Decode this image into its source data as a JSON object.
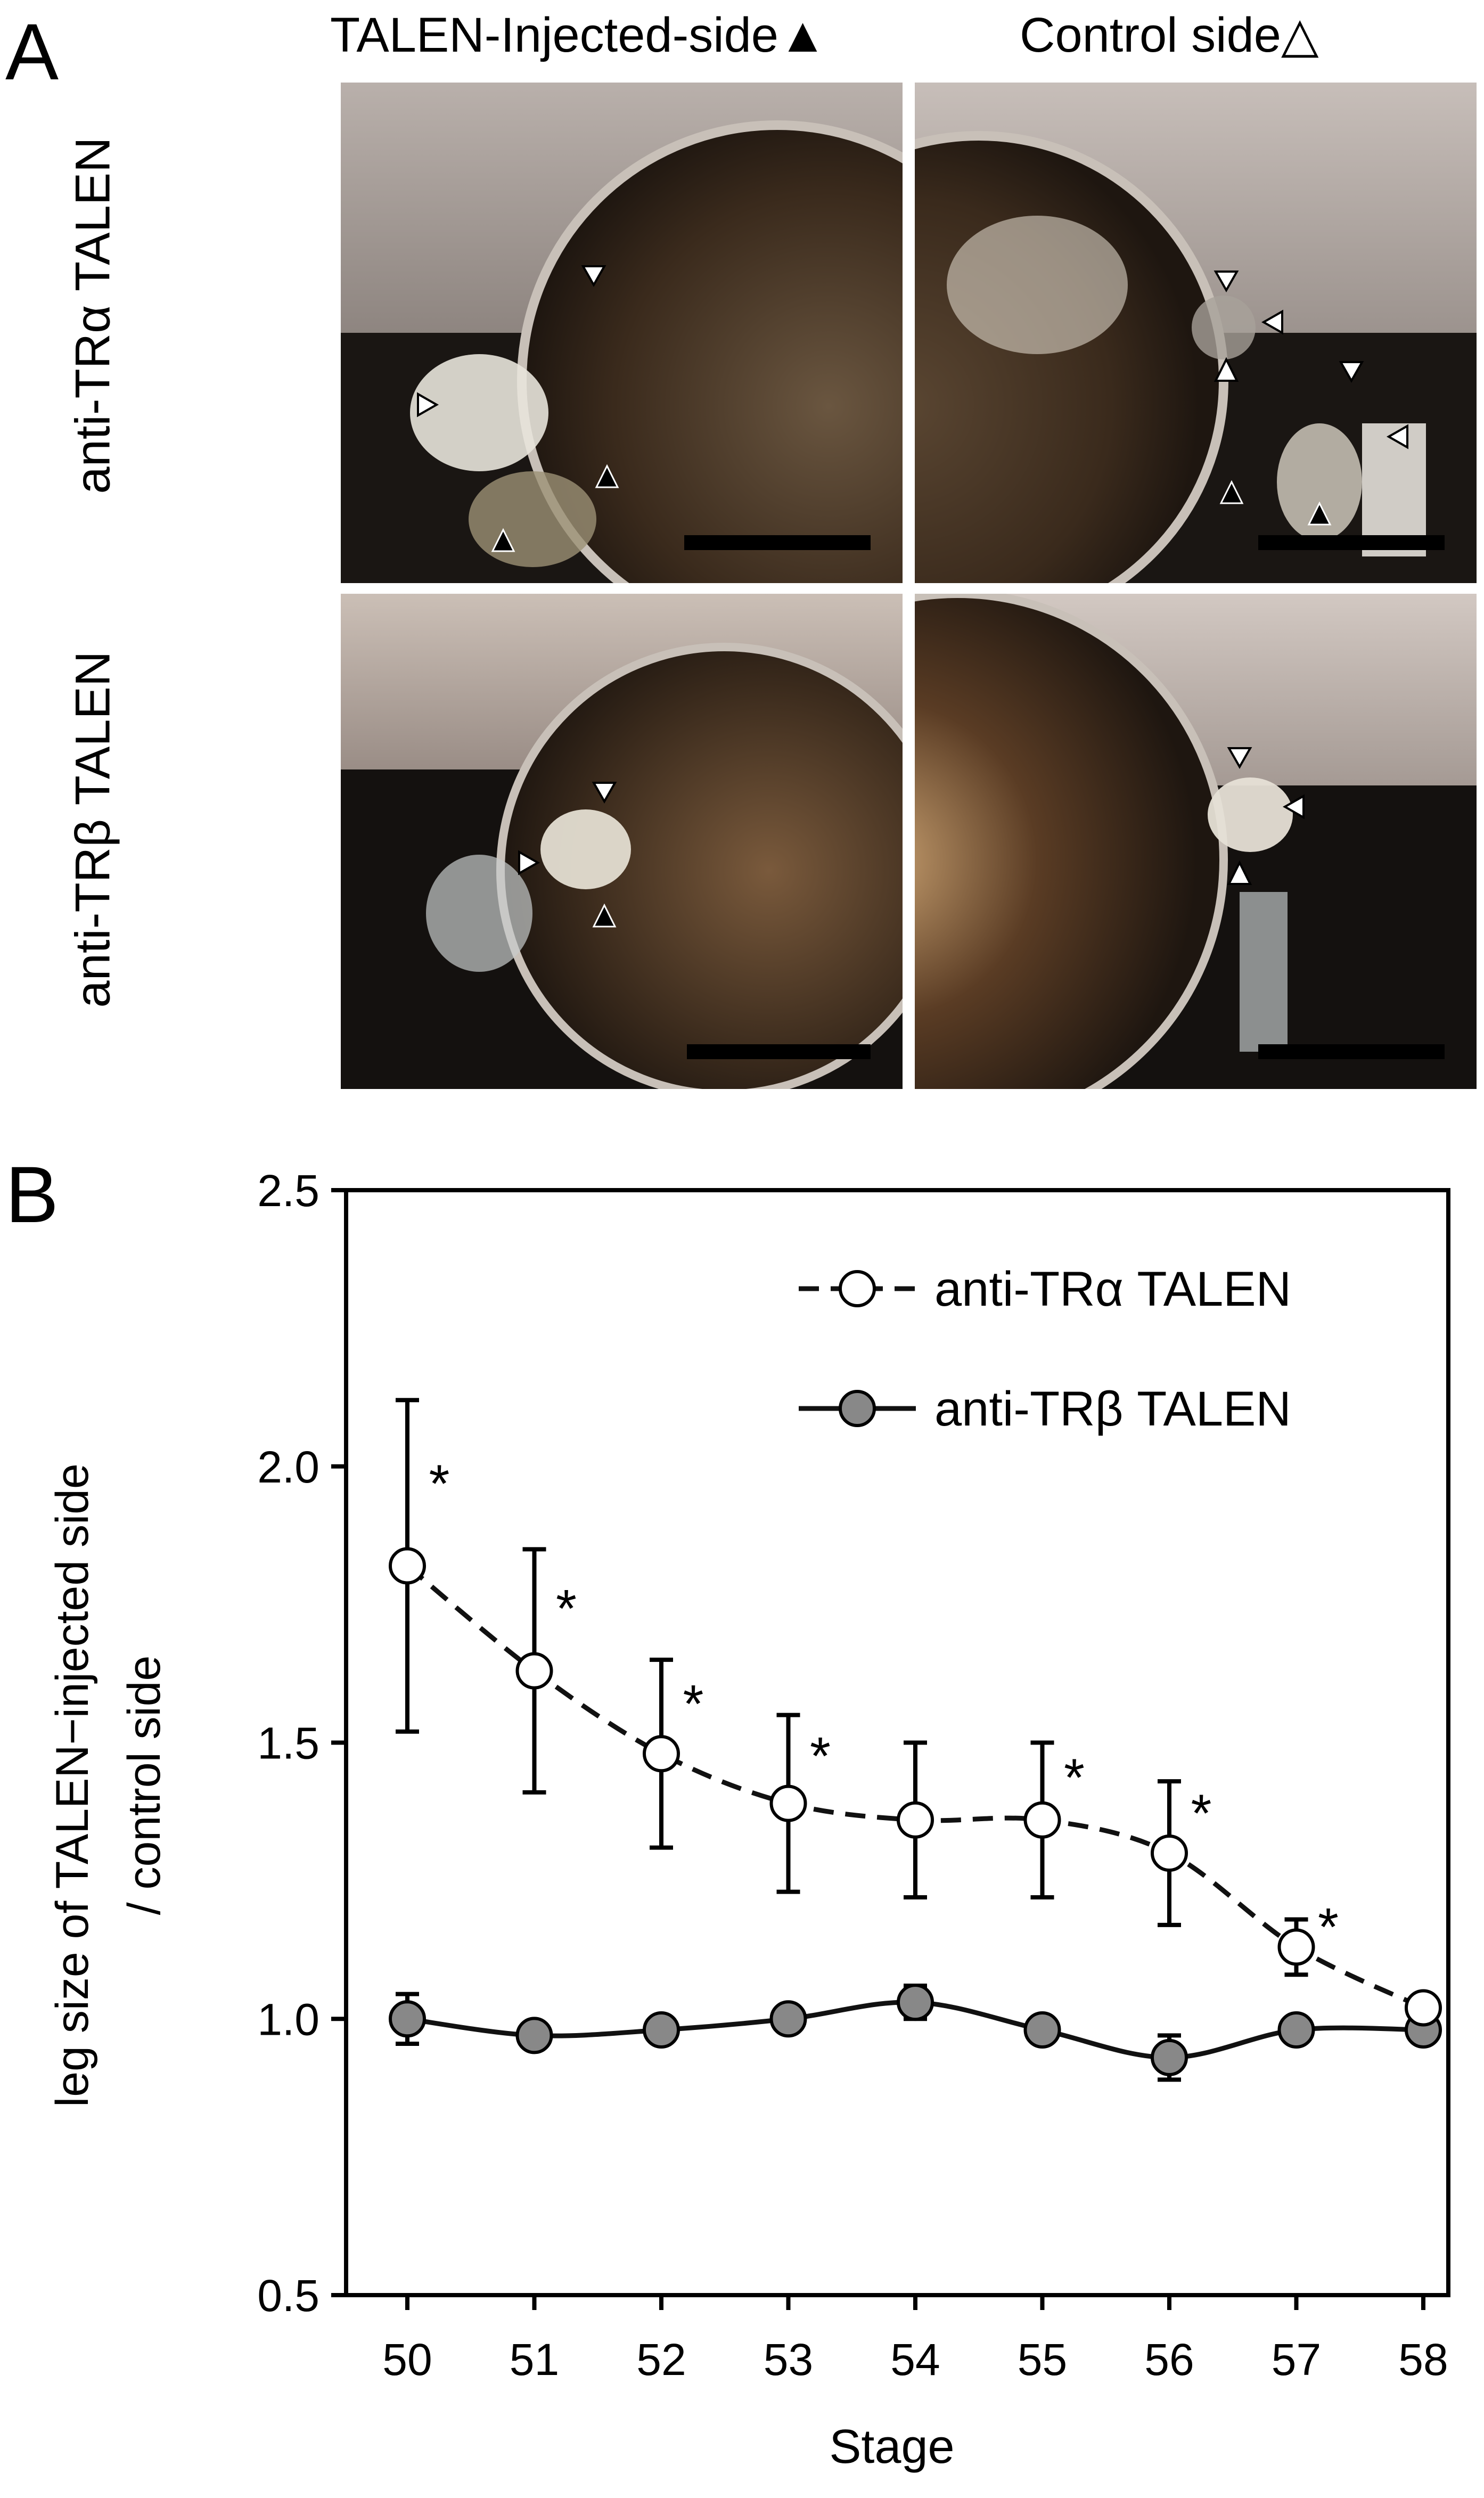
{
  "panel_a": {
    "letter": "A",
    "column_headers": [
      "TALEN-Injected-side▲",
      "Control side△"
    ],
    "row_labels": [
      "anti-TRα TALEN",
      "anti-TRβ TALEN"
    ],
    "colors": {
      "background_dark": "#1a1613",
      "skin_light": "#cfc6c2",
      "eye_dark": "#3a2a1c",
      "leg_bud": "#e8e4dc"
    }
  },
  "panel_b": {
    "letter": "B"
  },
  "chart_data": {
    "type": "line",
    "title": "",
    "xlabel": "Stage",
    "ylabel": "leg size of TALEN−injected side / control side",
    "ylabel_lines": [
      "leg size of TALEN−injected side",
      "/ control side"
    ],
    "categories": [
      "50",
      "51",
      "52",
      "53",
      "54",
      "55",
      "56",
      "57",
      "58"
    ],
    "ylim": [
      0.5,
      2.5
    ],
    "yticks": [
      "0.5",
      "1.0",
      "1.5",
      "2.0",
      "2.5"
    ],
    "legend_position": "top-right",
    "series": [
      {
        "name": "anti-TRα TALEN",
        "style": "dashed",
        "marker": "open-circle",
        "color": "#ffffff",
        "values": [
          1.82,
          1.63,
          1.48,
          1.39,
          1.36,
          1.36,
          1.3,
          1.13,
          1.02
        ],
        "errors": [
          0.3,
          0.22,
          0.17,
          0.16,
          0.14,
          0.14,
          0.13,
          0.05,
          0.0
        ],
        "significance": [
          "*",
          "*",
          "*",
          "*",
          "",
          "*",
          "*",
          "*",
          ""
        ]
      },
      {
        "name": "anti-TRβ TALEN",
        "style": "solid",
        "marker": "filled-circle",
        "color": "#888888",
        "values": [
          1.0,
          0.97,
          0.98,
          1.0,
          1.03,
          0.98,
          0.93,
          0.98,
          0.98
        ],
        "errors": [
          0.045,
          0.0,
          0.0,
          0.0,
          0.03,
          0.0,
          0.04,
          0.0,
          0.0
        ],
        "significance": [
          "",
          "",
          "",
          "",
          "",
          "",
          "",
          "",
          ""
        ]
      }
    ]
  }
}
